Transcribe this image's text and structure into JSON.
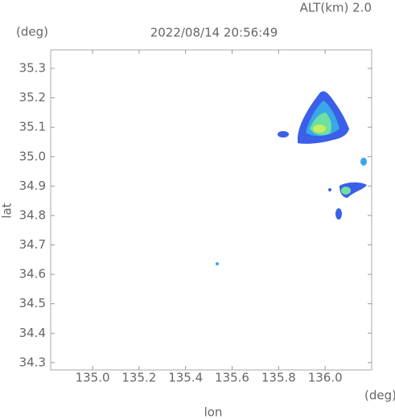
{
  "chart_data": {
    "type": "map",
    "title": "2022/08/14 20:56:49",
    "subtitle": "ALT(km)  2.0",
    "y_unit": "(deg)",
    "x_unit": "(deg)",
    "x_label": "lon",
    "y_label": "lat",
    "xlim": [
      134.82,
      136.2
    ],
    "xticks": [
      {
        "value": 135,
        "label": "135.0"
      },
      135.2,
      135.4,
      135.6,
      135.8,
      {
        "value": 136,
        "label": "136.0"
      }
    ],
    "ylim": [
      34.275,
      35.363
    ],
    "yticks": [
      34.3,
      34.4,
      34.5,
      34.6,
      34.7,
      34.8,
      34.9,
      {
        "value": 35,
        "label": "35.0"
      },
      35.1,
      35.2,
      35.3
    ]
  }
}
